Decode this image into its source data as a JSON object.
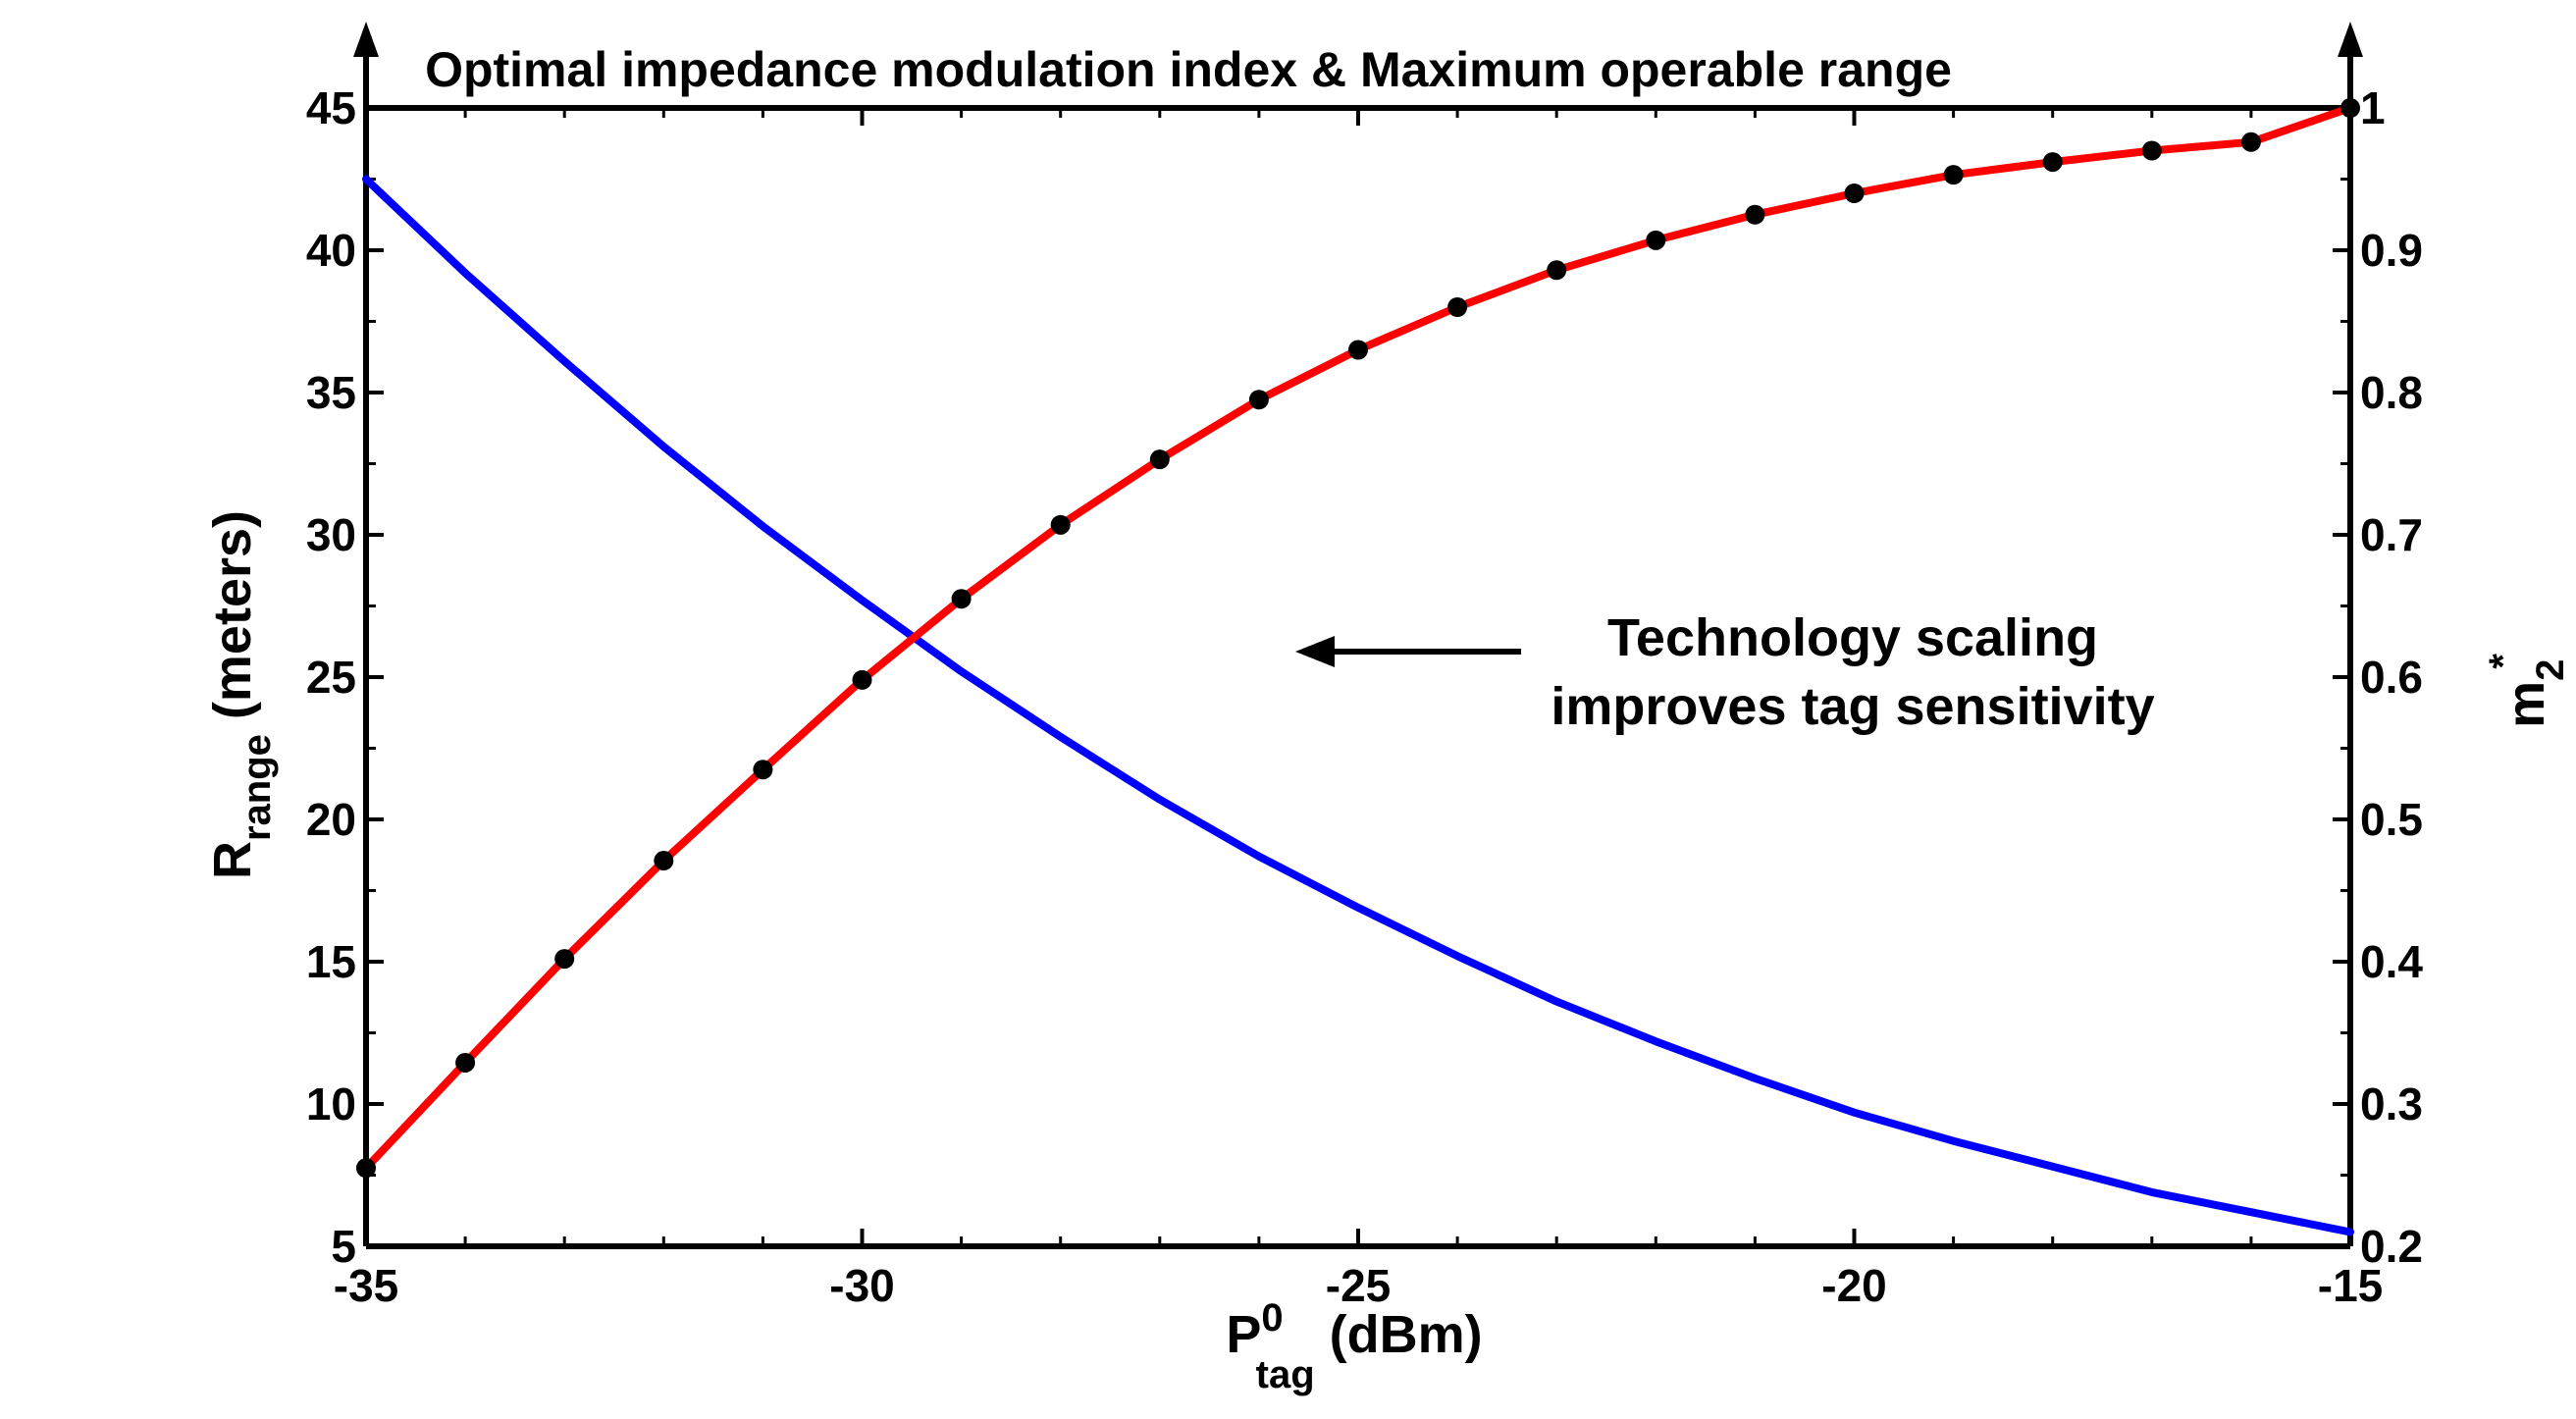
{
  "chart_data": {
    "type": "line",
    "title": "Optimal impedance modulation index & Maximum operable range",
    "xlabel": {
      "main": "P",
      "sup": "0",
      "sub": "tag",
      "unit": " (dBm)"
    },
    "ylabel_left": {
      "main": "R",
      "sub": "range",
      "unit": " (meters)"
    },
    "ylabel_right": {
      "main": "m",
      "sub": "2",
      "sup": "*"
    },
    "xlim": [
      -35,
      -15
    ],
    "ylim_left": [
      5,
      45
    ],
    "ylim_right": [
      0.2,
      1.0
    ],
    "x_ticks": [
      "-35",
      "-30",
      "-25",
      "-20",
      "-15"
    ],
    "x_tick_values": [
      -35,
      -30,
      -25,
      -20,
      -15
    ],
    "y_left_ticks": [
      "5",
      "10",
      "15",
      "20",
      "25",
      "30",
      "35",
      "40",
      "45"
    ],
    "y_left_tick_values": [
      5,
      10,
      15,
      20,
      25,
      30,
      35,
      40,
      45
    ],
    "y_right_ticks": [
      "0.2",
      "0.3",
      "0.4",
      "0.5",
      "0.6",
      "0.7",
      "0.8",
      "0.9",
      "1"
    ],
    "y_right_tick_values": [
      0.2,
      0.3,
      0.4,
      0.5,
      0.6,
      0.7,
      0.8,
      0.9,
      1.0
    ],
    "grid": false,
    "series": [
      {
        "axis": "left",
        "color": "#0000ff",
        "marker": "none",
        "x": [
          -35,
          -34,
          -33,
          -32,
          -31,
          -30,
          -29,
          -28,
          -27,
          -26,
          -25,
          -24,
          -23,
          -22,
          -21,
          -20,
          -19,
          -18,
          -17,
          -16,
          -15
        ],
        "values": [
          42.5,
          39.2,
          36.1,
          33.1,
          30.3,
          27.7,
          25.2,
          22.9,
          20.7,
          18.7,
          16.9,
          15.2,
          13.6,
          12.2,
          10.9,
          9.7,
          8.7,
          7.8,
          6.9,
          6.2,
          5.5
        ]
      },
      {
        "axis": "right",
        "color": "#ff0000",
        "marker": "circle",
        "marker_color": "#000000",
        "x": [
          -35,
          -34,
          -33,
          -32,
          -31,
          -30,
          -29,
          -28,
          -27,
          -26,
          -25,
          -24,
          -23,
          -22,
          -21,
          -20,
          -19,
          -18,
          -17,
          -16,
          -15
        ],
        "values": [
          0.255,
          0.329,
          0.402,
          0.471,
          0.535,
          0.598,
          0.655,
          0.707,
          0.753,
          0.795,
          0.83,
          0.86,
          0.886,
          0.907,
          0.925,
          0.94,
          0.953,
          0.962,
          0.97,
          0.976,
          1.0
        ]
      }
    ],
    "annotations": [
      {
        "lines": [
          "Technology scaling",
          "improves tag sensitivity"
        ],
        "arrow": "left"
      }
    ]
  }
}
